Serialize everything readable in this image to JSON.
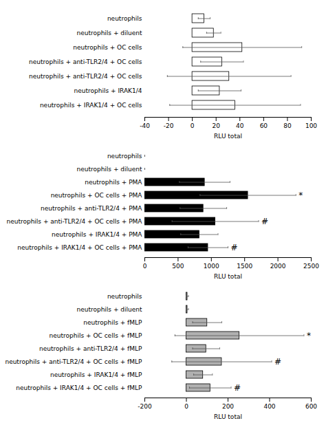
{
  "chart_data": [
    {
      "type": "bar",
      "orientation": "horizontal",
      "categories": [
        "neutrophils",
        "neutrophils + diluent",
        "neutrophils + OC cells",
        "neutrophils + anti-TLR2/4 + OC cells",
        "neutrophils + anti-TLR2/4 + OC cells",
        "neutrophils + IRAK1/4",
        "neutrophils + IRAK1/4 + OC cells"
      ],
      "values": [
        10,
        18,
        42,
        25,
        31,
        23,
        36
      ],
      "errors": [
        5,
        6,
        50,
        18,
        52,
        18,
        55
      ],
      "color": "#ffffff",
      "xlabel": "RLU total",
      "xlim": [
        -40,
        100
      ],
      "xticks": [
        -40,
        -20,
        0,
        20,
        40,
        60,
        80,
        100
      ]
    },
    {
      "type": "bar",
      "orientation": "horizontal",
      "categories": [
        "neutrophils",
        "neutrophils + diluent",
        "neutrophils + PMA",
        "neutrophils + OC cells + PMA",
        "neutrophils + anti-TLR2/4 + PMA",
        "neutrophils + anti-TLR2/4 + OC cells + PMA",
        "neutrophils + IRAK1/4 + PMA",
        "neutrophils + IRAK1/4 + OC cells + PMA"
      ],
      "values": [
        0,
        0,
        900,
        1550,
        880,
        1060,
        820,
        950
      ],
      "errors": [
        0,
        0,
        380,
        720,
        350,
        650,
        280,
        300
      ],
      "color": "#000000",
      "xlabel": "RLU total",
      "xlim": [
        0,
        2500
      ],
      "xticks": [
        0,
        500,
        1000,
        1500,
        2000,
        2500
      ],
      "annotations": [
        {
          "bar_index": 3,
          "text": "*"
        },
        {
          "bar_index": 5,
          "text": "#"
        },
        {
          "bar_index": 7,
          "text": "#"
        }
      ]
    },
    {
      "type": "bar",
      "orientation": "horizontal",
      "categories": [
        "neutrophils",
        "neutrophils + diluent",
        "neutrophils + fMLP",
        "neutrophils + OC cells + fMLP",
        "neutrophils + anti-TLR2/4 + fMLP",
        "neutrophils + anti-TLR2/4 + OC cells + fMLP",
        "neutrophils + IRAK1/4 + fMLP",
        "neutrophils + IRAK1/4 + OC cells + fMLP"
      ],
      "values": [
        5,
        5,
        100,
        255,
        95,
        170,
        80,
        115
      ],
      "errors": [
        5,
        5,
        70,
        310,
        65,
        240,
        45,
        100
      ],
      "color": "#b0b0b0",
      "xlabel": "RLU total",
      "xlim": [
        -200,
        600
      ],
      "xticks": [
        -200,
        0,
        200,
        400,
        600
      ],
      "annotations": [
        {
          "bar_index": 3,
          "text": "*"
        },
        {
          "bar_index": 5,
          "text": "#"
        },
        {
          "bar_index": 7,
          "text": "#"
        }
      ]
    }
  ]
}
